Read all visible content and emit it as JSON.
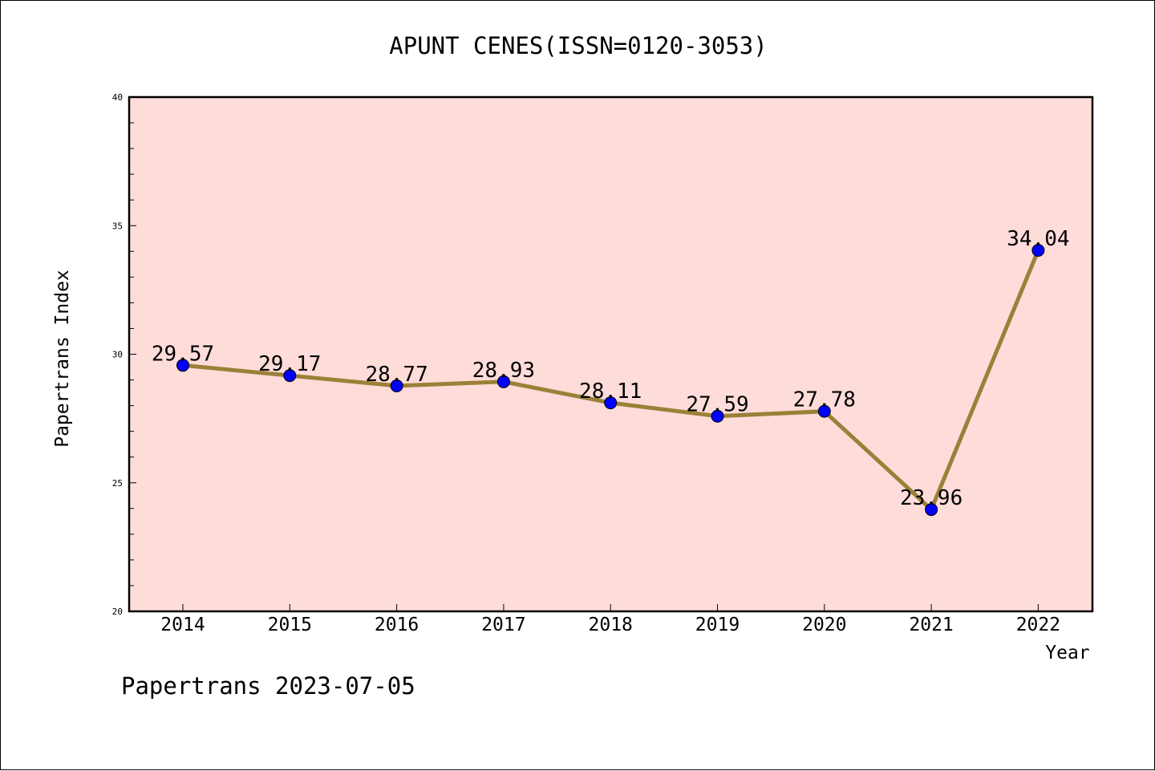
{
  "chart_data": {
    "type": "line",
    "title": "APUNT CENES(ISSN=0120-3053)",
    "xlabel": "Year",
    "ylabel": "Papertrans Index",
    "categories": [
      "2014",
      "2015",
      "2016",
      "2017",
      "2018",
      "2019",
      "2020",
      "2021",
      "2022"
    ],
    "values": [
      29.57,
      29.17,
      28.77,
      28.93,
      28.11,
      27.59,
      27.78,
      23.96,
      34.04
    ],
    "value_labels": [
      "29.57",
      "29.17",
      "28.77",
      "28.93",
      "28.11",
      "27.59",
      "27.78",
      "23.96",
      "34.04"
    ],
    "ylim": [
      20,
      40
    ],
    "y_ticks": [
      "20",
      "25",
      "30",
      "35",
      "40"
    ],
    "grid": false,
    "plot_background": "#fddcd9",
    "line_color": "#9b8038",
    "marker_color": "#0000ff"
  },
  "footer": {
    "text": "Papertrans 2023-07-05"
  }
}
